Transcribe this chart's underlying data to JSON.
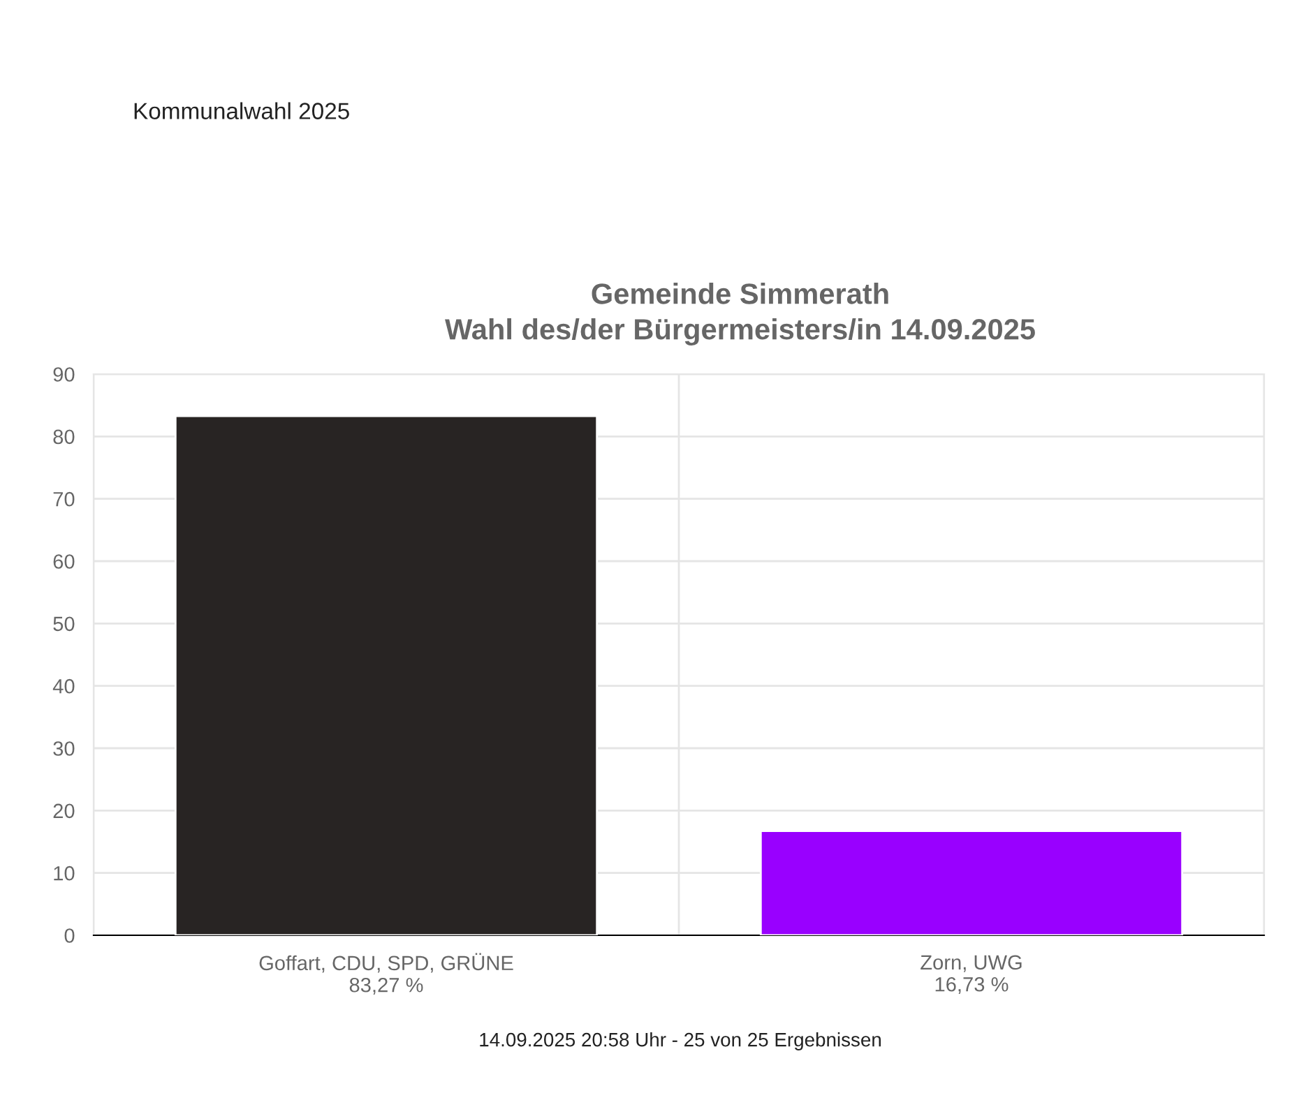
{
  "chart_data": {
    "type": "bar",
    "title": "Gemeinde Simmerath\nWahl des/der Bürgermeisters/in 14.09.2025",
    "categories": [
      "Goffart, CDU, SPD, GRÜNE",
      "Zorn, UWG"
    ],
    "series": [
      {
        "values": [
          83.27,
          16.73
        ],
        "value_labels": [
          "83,27 %",
          "16,73 %"
        ],
        "colors": [
          "#282423",
          "#9900ff"
        ]
      }
    ],
    "ylim": [
      0,
      90
    ],
    "yticks": [
      0,
      10,
      20,
      30,
      40,
      50,
      60,
      70,
      80,
      90
    ],
    "grid": true,
    "legend": false,
    "annotations": [
      "Kommunalwahl 2025",
      "14.09.2025 20:58 Uhr - 25 von 25 Ergebnissen"
    ]
  }
}
